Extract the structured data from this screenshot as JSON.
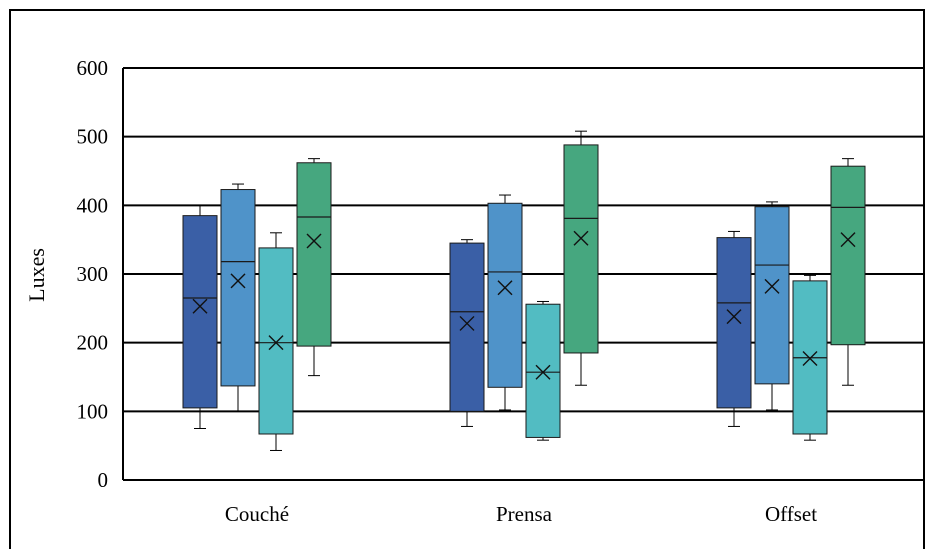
{
  "chart_data": {
    "type": "box",
    "title": "",
    "xlabel": "",
    "ylabel": "Luxes",
    "ylim": [
      0,
      600
    ],
    "yticks": [
      0,
      100,
      200,
      300,
      400,
      500,
      600
    ],
    "categories": [
      "Couché",
      "Prensa",
      "Offset"
    ],
    "grid": "horizontal",
    "series": [
      {
        "color": "#3a5fa6",
        "boxes": [
          {
            "min": 75,
            "q1": 105,
            "median": 265,
            "q3": 385,
            "max": 400,
            "mean": 253
          },
          {
            "min": 78,
            "q1": 100,
            "median": 245,
            "q3": 345,
            "max": 350,
            "mean": 228
          },
          {
            "min": 78,
            "q1": 105,
            "median": 258,
            "q3": 353,
            "max": 362,
            "mean": 238
          }
        ]
      },
      {
        "color": "#4f93c9",
        "boxes": [
          {
            "min": 100,
            "q1": 137,
            "median": 318,
            "q3": 423,
            "max": 431,
            "mean": 290
          },
          {
            "min": 102,
            "q1": 135,
            "median": 303,
            "q3": 403,
            "max": 415,
            "mean": 280
          },
          {
            "min": 102,
            "q1": 140,
            "median": 313,
            "q3": 398,
            "max": 405,
            "mean": 282
          }
        ]
      },
      {
        "color": "#52bcc2",
        "boxes": [
          {
            "min": 43,
            "q1": 67,
            "median": 200,
            "q3": 338,
            "max": 360,
            "mean": 200
          },
          {
            "min": 58,
            "q1": 62,
            "median": 157,
            "q3": 256,
            "max": 260,
            "mean": 157
          },
          {
            "min": 58,
            "q1": 67,
            "median": 178,
            "q3": 290,
            "max": 298,
            "mean": 177
          }
        ]
      },
      {
        "color": "#46a77f",
        "boxes": [
          {
            "min": 152,
            "q1": 195,
            "median": 383,
            "q3": 462,
            "max": 468,
            "mean": 348
          },
          {
            "min": 138,
            "q1": 185,
            "median": 381,
            "q3": 488,
            "max": 508,
            "mean": 352
          },
          {
            "min": 138,
            "q1": 197,
            "median": 397,
            "q3": 457,
            "max": 468,
            "mean": 350
          }
        ]
      }
    ]
  }
}
